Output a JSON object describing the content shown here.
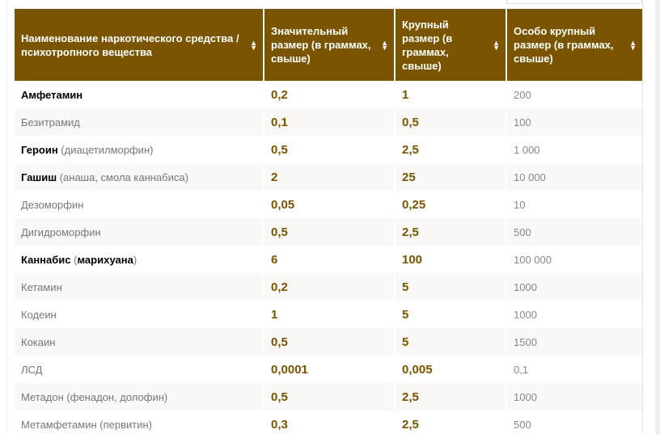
{
  "headers": [
    "Наименование наркотического средства / психотропного вещества",
    "Значительный размер (в граммах, свыше)",
    "Крупный размер (в граммах, свыше)",
    "Особо крупный размер (в граммах, свыше)"
  ],
  "accent": "#7b5400",
  "rows": [
    {
      "name": "Амфетамин",
      "note": "",
      "bold": true,
      "v1": "0,2",
      "v2": "1",
      "v3": "200"
    },
    {
      "name": "Безитрамид",
      "note": "",
      "bold": false,
      "v1": "0,1",
      "v2": "0,5",
      "v3": "100"
    },
    {
      "name": "Героин",
      "note": " (диацетилморфин)",
      "bold": true,
      "v1": "0,5",
      "v2": "2,5",
      "v3": "1 000"
    },
    {
      "name": "Гашиш",
      "note": " (анаша, смола каннабиса)",
      "bold": true,
      "v1": "2",
      "v2": "25",
      "v3": "10 000"
    },
    {
      "name": "Дезоморфин",
      "note": "",
      "bold": false,
      "v1": "0,05",
      "v2": "0,25",
      "v3": "10"
    },
    {
      "name": "Дигидроморфин",
      "note": "",
      "bold": false,
      "v1": "0,5",
      "v2": "2,5",
      "v3": "500"
    },
    {
      "name": "Каннабис (марихуана)",
      "note": "",
      "bold": true,
      "v1": "6",
      "v2": "100",
      "v3": "100 000"
    },
    {
      "name": "Кетамин",
      "note": "",
      "bold": false,
      "v1": "0,2",
      "v2": "5",
      "v3": "1000"
    },
    {
      "name": "Кодеин",
      "note": "",
      "bold": false,
      "v1": "1",
      "v2": "5",
      "v3": "1000"
    },
    {
      "name": "Кокаин",
      "note": "",
      "bold": false,
      "v1": "0,5",
      "v2": "5",
      "v3": "1500"
    },
    {
      "name": "ЛСД",
      "note": "",
      "bold": false,
      "v1": "0,0001",
      "v2": "0,005",
      "v3": "0,1"
    },
    {
      "name": "Метадон (фенадон, долофин)",
      "note": "",
      "bold": false,
      "v1": "0,5",
      "v2": "2,5",
      "v3": "1000"
    },
    {
      "name": "Метамфетамин (первитин)",
      "note": "",
      "bold": false,
      "v1": "0,3",
      "v2": "2,5",
      "v3": "500"
    }
  ]
}
